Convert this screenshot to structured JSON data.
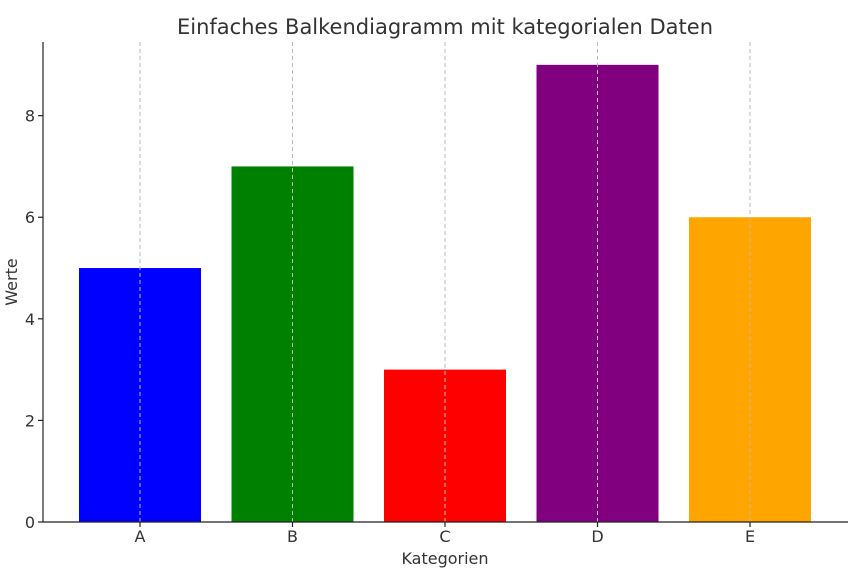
{
  "chart_data": {
    "type": "bar",
    "title": "Einfaches Balkendiagramm mit kategorialen Daten",
    "xlabel": "Kategorien",
    "ylabel": "Werte",
    "categories": [
      "A",
      "B",
      "C",
      "D",
      "E"
    ],
    "values": [
      5,
      7,
      3,
      9,
      6
    ],
    "colors": [
      "#0000ff",
      "#008000",
      "#ff0000",
      "#800080",
      "#ffa500"
    ],
    "ylim": [
      0,
      9.45
    ],
    "yticks": [
      0,
      2,
      4,
      6,
      8
    ],
    "grid": "x-dashed"
  }
}
